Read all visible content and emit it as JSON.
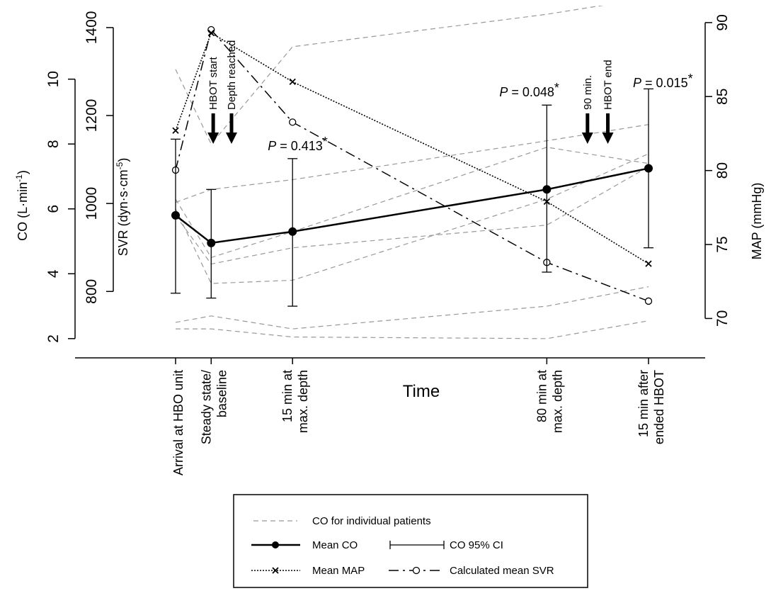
{
  "chart_data": {
    "type": "line",
    "xlabel": "Time",
    "categories": [
      [
        "Arrival at HBO unit"
      ],
      [
        "Steady state/",
        "baseline"
      ],
      [
        "15 min at",
        "max. depth"
      ],
      [
        "80 min at",
        "max. depth"
      ],
      [
        "15 min after",
        "ended HBOT"
      ]
    ],
    "x_positions": [
      0,
      0.35,
      1.15,
      3.65,
      4.65
    ],
    "axes": {
      "co": {
        "label": "CO (L·min",
        "label_sup": "-1",
        "label_end": ")",
        "ticks": [
          "2",
          "4",
          "6",
          "8",
          "10"
        ],
        "ylim": [
          1.8,
          12.2
        ]
      },
      "svr": {
        "label": "SVR (dyn·s·cm",
        "label_sup": "-5",
        "label_end": ")",
        "ticks": [
          "800",
          "1000",
          "1200",
          "1400"
        ],
        "ylim": [
          678,
          1445
        ]
      },
      "map": {
        "label": "MAP (mmHg)",
        "ticks": [
          "70",
          "75",
          "80",
          "85",
          "90"
        ],
        "ylim": [
          68.2,
          91
        ]
      }
    },
    "series": [
      {
        "name": "Mean CO",
        "axis": "co",
        "values": [
          5.8,
          4.95,
          5.3,
          6.6,
          7.25
        ],
        "ci_low": [
          3.4,
          3.25,
          3.0,
          4.05,
          4.8
        ],
        "ci_high": [
          8.15,
          6.6,
          7.55,
          9.2,
          9.7
        ]
      },
      {
        "name": "Mean MAP",
        "axis": "map",
        "values": [
          82.7,
          89.3,
          86,
          77.9,
          73.7
        ]
      },
      {
        "name": "Calculated mean SVR",
        "axis": "svr",
        "values": [
          1076,
          1395,
          1185,
          866,
          778
        ]
      }
    ],
    "individual_patients": [
      [
        5.8,
        4.3,
        4.8,
        5.5,
        7.3
      ],
      [
        6.3,
        4.5,
        5.3,
        7.9,
        7.4
      ],
      [
        10.3,
        8.0,
        11.0,
        12.0,
        12.5
      ],
      [
        6.2,
        6.6,
        6.9,
        8.1,
        8.6
      ],
      [
        6.0,
        3.7,
        3.8,
        6.3,
        7.7
      ],
      [
        2.5,
        2.7,
        2.3,
        3.0,
        3.6
      ],
      [
        2.3,
        2.3,
        2.05,
        2.0,
        2.55
      ]
    ],
    "p_values": [
      {
        "text": "P = 0.413",
        "star": "*",
        "at": 2
      },
      {
        "text": "P = 0.048",
        "star": "*",
        "at": 3
      },
      {
        "text": "P = 0.015",
        "star": "*",
        "at": 4
      }
    ],
    "events": [
      {
        "label": "HBOT start",
        "x": 0.37
      },
      {
        "label": "Depth reached",
        "x": 0.55
      },
      {
        "label": "90 min.",
        "x": 4.05
      },
      {
        "label": "HBOT end",
        "x": 4.25
      }
    ],
    "legend": {
      "placement": "bottom-center",
      "items": {
        "individual": "CO for individual patients",
        "mean_co": "Mean CO",
        "ci": "CO 95% CI",
        "mean_map": "Mean MAP",
        "svr": "Calculated mean SVR"
      }
    },
    "grid": false
  }
}
